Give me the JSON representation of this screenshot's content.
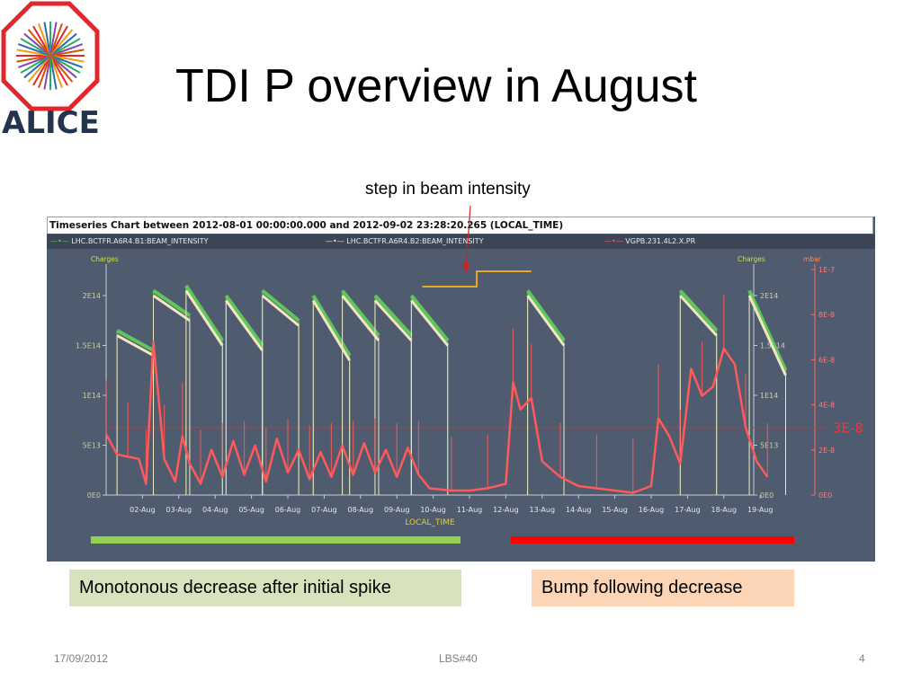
{
  "slide": {
    "title": "TDI P overview in August",
    "logo_text": "ALICE",
    "annotation": "step in beam intensity",
    "left_box_text": "Monotonous decrease after initial spike",
    "right_box_text": "Bump following decrease",
    "footer_date": "17/09/2012",
    "footer_center": "LBS#40",
    "footer_page": "4"
  },
  "colors": {
    "chart_bg": "#4f5b6e",
    "series_b1": "#60c65a",
    "series_b2": "#f2e6c2",
    "series_vac": "#ff5a5a",
    "green_bar": "#92d050",
    "red_bar": "#ff0000",
    "step_line": "#e8a820",
    "threshold": "#d93030"
  },
  "chart_data": {
    "type": "line",
    "title": "Timeseries Chart between 2012-08-01 00:00:00.000 and 2012-09-02 23:28:20.265 (LOCAL_TIME)",
    "xlabel": "LOCAL_TIME",
    "categories": [
      "02-Aug",
      "03-Aug",
      "04-Aug",
      "05-Aug",
      "06-Aug",
      "07-Aug",
      "08-Aug",
      "09-Aug",
      "10-Aug",
      "11-Aug",
      "12-Aug",
      "13-Aug",
      "14-Aug",
      "15-Aug",
      "16-Aug",
      "17-Aug",
      "18-Aug",
      "19-Aug"
    ],
    "x_start": "01-Aug",
    "y_left": {
      "label": "Charges",
      "ticks": [
        "0E0",
        "5E13",
        "1E14",
        "1.5E14",
        "2E14"
      ],
      "ylim": [
        0,
        200000000000000.0
      ]
    },
    "y_right_charges": {
      "label": "Charges",
      "ticks": [
        "0E0",
        "5E13",
        "1E14",
        "1.5E14",
        "2E14"
      ]
    },
    "y_right_pressure": {
      "label": "mbar",
      "ticks": [
        "0E0",
        "2E-8",
        "4E-8",
        "6E-8",
        "8E-8",
        "1E-7"
      ],
      "ylim": [
        0,
        1e-07
      ]
    },
    "threshold": {
      "label": "3E-8",
      "value": 3e-08
    },
    "series": [
      {
        "name": "LHC.BCTFR.A6R4.B1:BEAM_INTENSITY",
        "axis": "charges",
        "color": "#60c65a",
        "fills": [
          [
            1.3,
            165000000000000.0,
            145000000000000.0
          ],
          [
            2.3,
            205000000000000.0,
            180000000000000.0
          ],
          [
            3.2,
            210000000000000.0,
            155000000000000.0
          ],
          [
            4.3,
            200000000000000.0,
            150000000000000.0
          ],
          [
            5.3,
            205000000000000.0,
            175000000000000.0
          ],
          [
            6.7,
            200000000000000.0,
            140000000000000.0
          ],
          [
            7.5,
            205000000000000.0,
            160000000000000.0
          ],
          [
            8.4,
            200000000000000.0,
            160000000000000.0
          ],
          [
            9.4,
            200000000000000.0,
            155000000000000.0
          ],
          [
            12.6,
            205000000000000.0,
            155000000000000.0
          ],
          [
            16.8,
            205000000000000.0,
            165000000000000.0
          ],
          [
            18.7,
            205000000000000.0,
            125000000000000.0
          ]
        ]
      },
      {
        "name": "LHC.BCTFR.A6R4.B2:BEAM_INTENSITY",
        "axis": "charges",
        "color": "#f2e6c2",
        "fills": [
          [
            1.3,
            160000000000000.0,
            140000000000000.0
          ],
          [
            2.3,
            200000000000000.0,
            175000000000000.0
          ],
          [
            3.2,
            205000000000000.0,
            150000000000000.0
          ],
          [
            4.3,
            195000000000000.0,
            145000000000000.0
          ],
          [
            5.3,
            200000000000000.0,
            170000000000000.0
          ],
          [
            6.7,
            195000000000000.0,
            135000000000000.0
          ],
          [
            7.5,
            200000000000000.0,
            155000000000000.0
          ],
          [
            8.4,
            195000000000000.0,
            155000000000000.0
          ],
          [
            9.4,
            195000000000000.0,
            150000000000000.0
          ],
          [
            12.6,
            200000000000000.0,
            150000000000000.0
          ],
          [
            16.8,
            200000000000000.0,
            160000000000000.0
          ],
          [
            18.7,
            200000000000000.0,
            120000000000000.0
          ]
        ]
      },
      {
        "name": "VGPB.231.4L2.X.PR",
        "axis": "pressure",
        "color": "#ff5a5a",
        "x": [
          1.0,
          1.3,
          1.6,
          1.9,
          2.1,
          2.3,
          2.6,
          2.9,
          3.1,
          3.3,
          3.6,
          3.9,
          4.2,
          4.5,
          4.8,
          5.1,
          5.4,
          5.7,
          6.0,
          6.3,
          6.6,
          6.9,
          7.2,
          7.5,
          7.8,
          8.1,
          8.4,
          8.7,
          9.0,
          9.3,
          9.6,
          9.9,
          10.5,
          11.0,
          11.5,
          12.0,
          12.2,
          12.4,
          12.7,
          13.0,
          13.5,
          14.0,
          14.5,
          15.0,
          15.5,
          16.0,
          16.2,
          16.5,
          16.8,
          17.1,
          17.4,
          17.7,
          18.0,
          18.3,
          18.6,
          18.9,
          19.2
        ],
        "y": [
          2.7e-08,
          1.8e-08,
          1.7e-08,
          1.6e-08,
          5e-09,
          6.8e-08,
          1.6e-08,
          6e-09,
          2.6e-08,
          1.4e-08,
          5e-09,
          2e-08,
          8e-09,
          2.4e-08,
          9e-09,
          2.2e-08,
          6e-09,
          2.5e-08,
          1e-08,
          2e-08,
          7e-09,
          1.9e-08,
          8e-09,
          2.2e-08,
          9e-09,
          2.3e-08,
          1e-08,
          2e-08,
          8e-09,
          2.1e-08,
          9e-09,
          3e-09,
          2e-09,
          2e-09,
          3e-09,
          5e-09,
          5e-08,
          3.8e-08,
          4.3e-08,
          1.5e-08,
          8e-09,
          4e-09,
          3e-09,
          2e-09,
          1e-09,
          4e-09,
          3.4e-08,
          2.6e-08,
          1.4e-08,
          5.6e-08,
          4.4e-08,
          4.8e-08,
          6.5e-08,
          5.8e-08,
          3e-08,
          1.5e-08,
          8e-09
        ]
      }
    ],
    "step_annotation": {
      "x_from": 9.7,
      "x_to": 12.7,
      "x_step": 11.2
    }
  }
}
